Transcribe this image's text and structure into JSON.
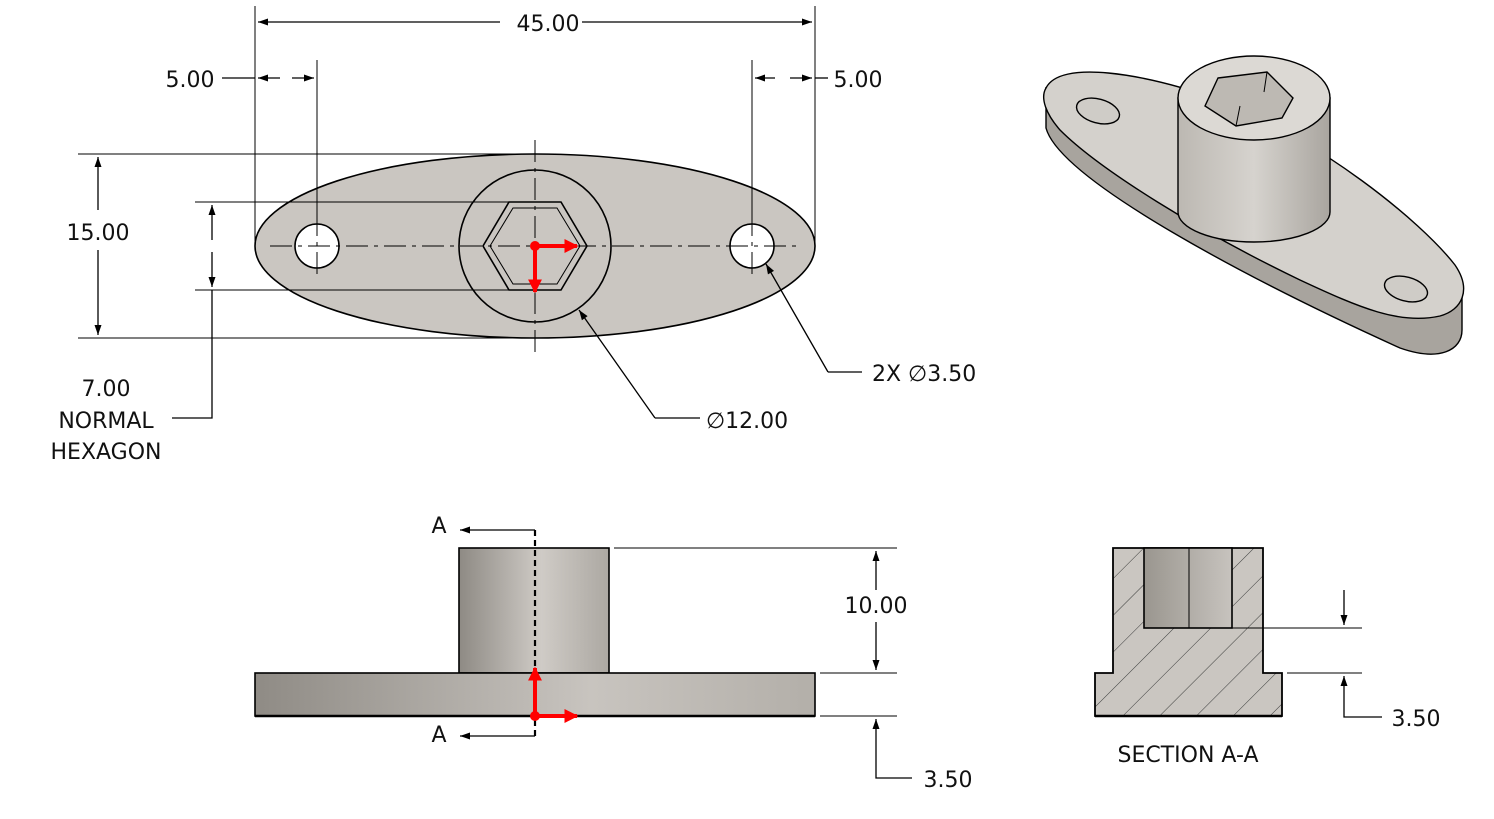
{
  "dimensions": {
    "overall_length": "45.00",
    "left_hole_offset": "5.00",
    "right_hole_offset": "5.00",
    "width": "15.00",
    "hex_size": "7.00",
    "hex_note_line1": "NORMAL",
    "hex_note_line2": "HEXAGON",
    "hole_callout": "2X  ∅3.50",
    "boss_diameter": "∅12.00",
    "boss_height": "10.00",
    "base_thickness_front": "3.50",
    "base_thickness_section": "3.50"
  },
  "section": {
    "label": "SECTION A-A",
    "cut_mark_top": "A",
    "cut_mark_bottom": "A"
  },
  "colors": {
    "part_fill": "#cac6c1",
    "part_dark": "#8e8a84",
    "part_light": "#dedbd6",
    "coordinate_axis": "#ff0000",
    "line": "#000000"
  }
}
